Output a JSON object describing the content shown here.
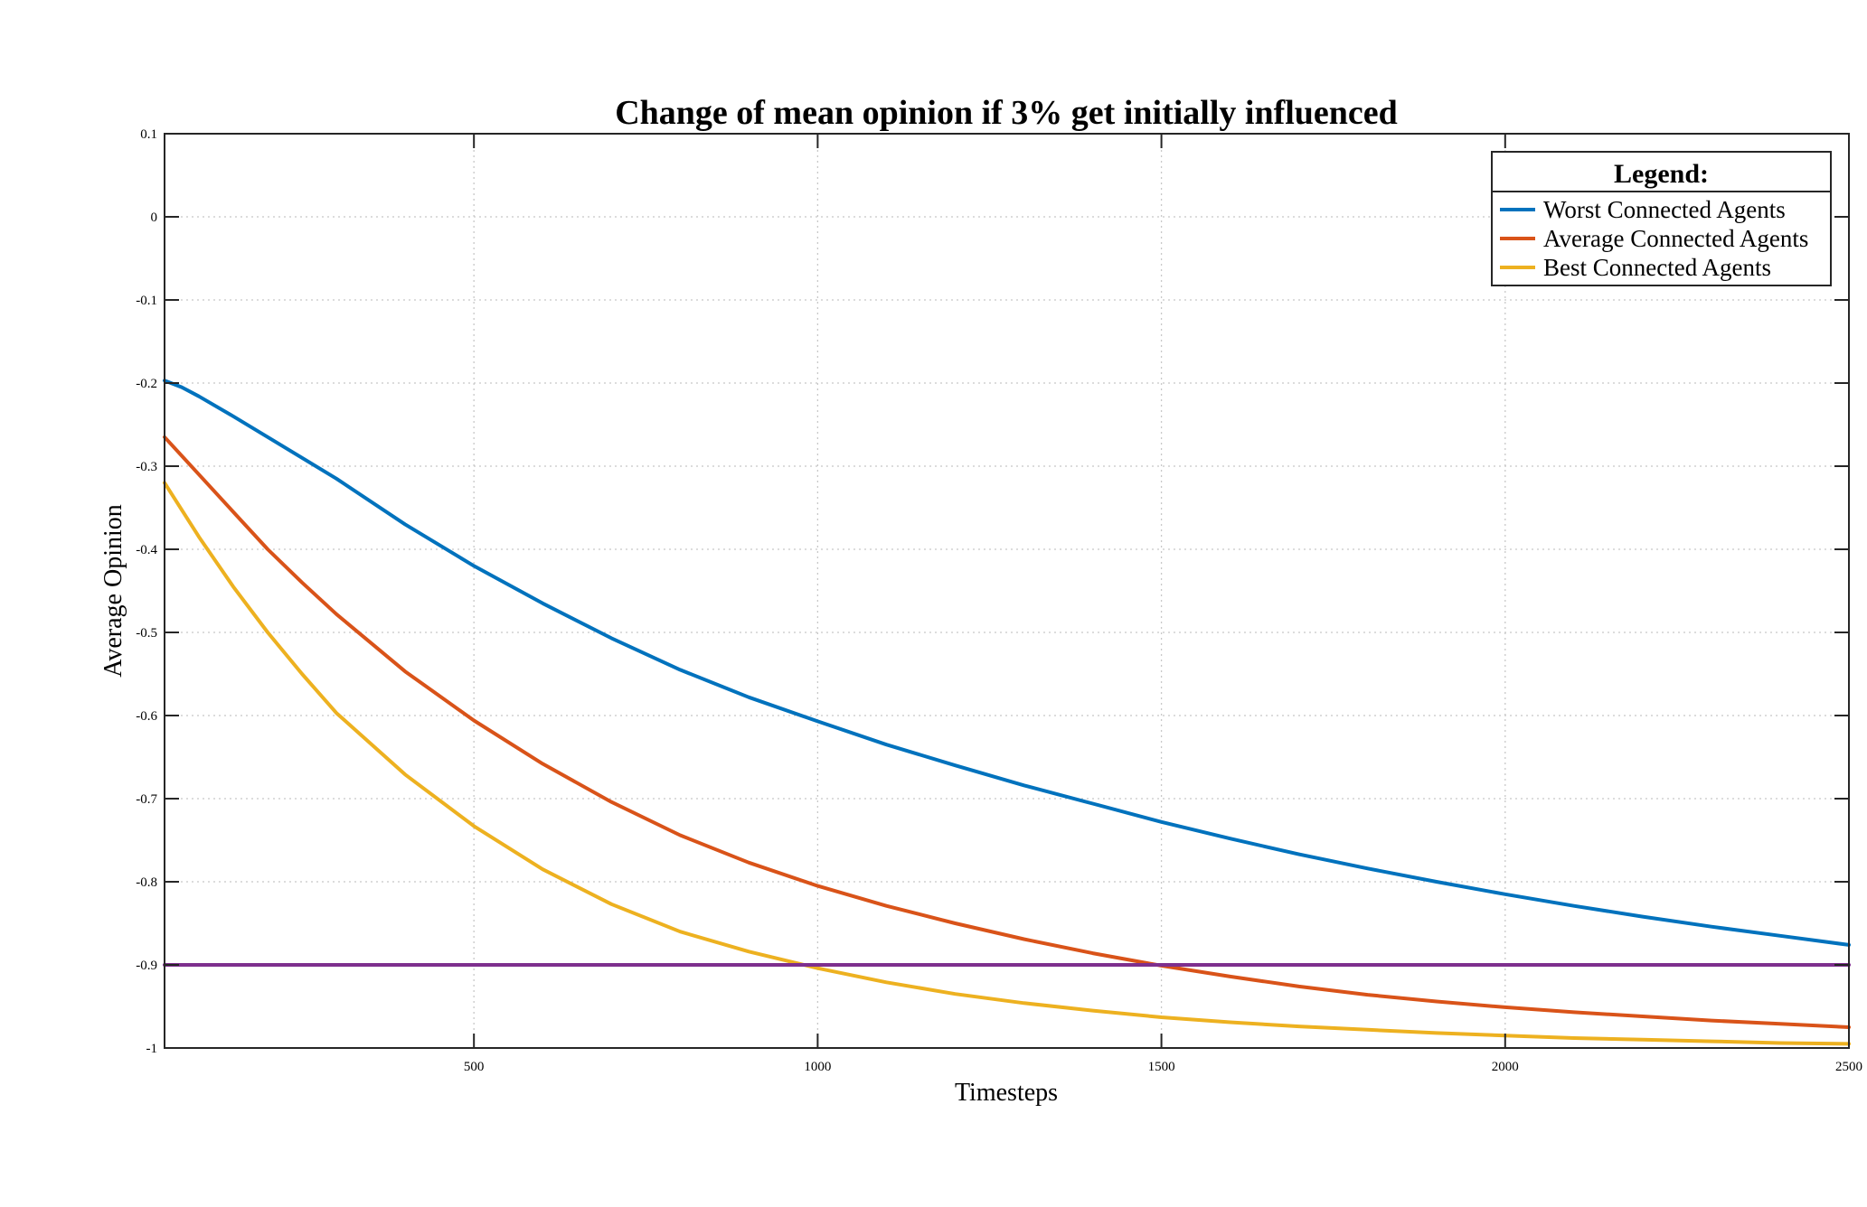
{
  "chart_data": {
    "type": "line",
    "title": "Change of mean opinion if 3% get initially influenced",
    "xlabel": "Timesteps",
    "ylabel": "Average Opinion",
    "xlim": [
      50,
      2500
    ],
    "ylim": [
      -1,
      0.1
    ],
    "xticks": [
      500,
      1000,
      1500,
      2000,
      2500
    ],
    "xtick_labels": [
      "500",
      "1000",
      "1500",
      "2000",
      "2500"
    ],
    "yticks": [
      0.1,
      0,
      -0.1,
      -0.2,
      -0.3,
      -0.4,
      -0.5,
      -0.6,
      -0.7,
      -0.8,
      -0.9,
      -1
    ],
    "ytick_labels": [
      "0.1",
      "0",
      "-0.1",
      "-0.2",
      "-0.3",
      "-0.4",
      "-0.5",
      "-0.6",
      "-0.7",
      "-0.8",
      "-0.9",
      "-1"
    ],
    "grid": true,
    "legend": {
      "title": "Legend:",
      "position": "top-right"
    },
    "series": [
      {
        "name": "Worst Connected Agents",
        "color": "#0072BD",
        "x": [
          50,
          75,
          100,
          150,
          200,
          300,
          400,
          500,
          600,
          700,
          800,
          900,
          1000,
          1100,
          1200,
          1300,
          1400,
          1500,
          1600,
          1700,
          1800,
          1900,
          2000,
          2100,
          2200,
          2300,
          2400,
          2500
        ],
        "y": [
          -0.197,
          -0.205,
          -0.216,
          -0.24,
          -0.265,
          -0.315,
          -0.37,
          -0.42,
          -0.465,
          -0.507,
          -0.545,
          -0.578,
          -0.607,
          -0.635,
          -0.66,
          -0.684,
          -0.706,
          -0.728,
          -0.748,
          -0.767,
          -0.784,
          -0.8,
          -0.815,
          -0.829,
          -0.842,
          -0.854,
          -0.865,
          -0.876
        ]
      },
      {
        "name": "Average Connected Agents",
        "color": "#D95319",
        "x": [
          50,
          100,
          150,
          200,
          250,
          300,
          400,
          500,
          600,
          700,
          800,
          900,
          1000,
          1100,
          1200,
          1300,
          1400,
          1500,
          1600,
          1700,
          1800,
          1900,
          2000,
          2100,
          2200,
          2300,
          2400,
          2500
        ],
        "y": [
          -0.265,
          -0.31,
          -0.355,
          -0.4,
          -0.44,
          -0.478,
          -0.547,
          -0.606,
          -0.658,
          -0.704,
          -0.744,
          -0.777,
          -0.805,
          -0.829,
          -0.85,
          -0.869,
          -0.886,
          -0.901,
          -0.914,
          -0.926,
          -0.936,
          -0.944,
          -0.951,
          -0.957,
          -0.962,
          -0.967,
          -0.971,
          -0.975
        ]
      },
      {
        "name": "Best Connected Agents",
        "color": "#EDB120",
        "x": [
          50,
          100,
          150,
          200,
          250,
          300,
          400,
          500,
          600,
          700,
          800,
          900,
          1000,
          1100,
          1200,
          1300,
          1400,
          1500,
          1600,
          1700,
          1800,
          1900,
          2000,
          2100,
          2200,
          2300,
          2400,
          2500
        ],
        "y": [
          -0.32,
          -0.385,
          -0.445,
          -0.5,
          -0.55,
          -0.597,
          -0.671,
          -0.733,
          -0.785,
          -0.827,
          -0.86,
          -0.884,
          -0.904,
          -0.921,
          -0.935,
          -0.946,
          -0.955,
          -0.963,
          -0.969,
          -0.974,
          -0.978,
          -0.982,
          -0.985,
          -0.988,
          -0.99,
          -0.992,
          -0.994,
          -0.995
        ]
      },
      {
        "color": "#7E2F8E",
        "x": [
          50,
          2500
        ],
        "y": [
          -0.9,
          -0.9
        ]
      }
    ]
  }
}
